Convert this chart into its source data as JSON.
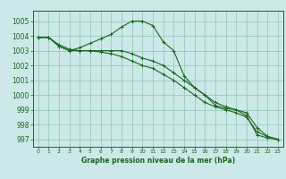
{
  "title": "Graphe pression niveau de la mer (hPa)",
  "background_color": "#cce8e8",
  "grid_color": "#99ccbb",
  "line_color": "#1a6620",
  "xlim": [
    -0.5,
    23.5
  ],
  "ylim": [
    996.5,
    1005.7
  ],
  "yticks": [
    997,
    998,
    999,
    1000,
    1001,
    1002,
    1003,
    1004,
    1005
  ],
  "xticks": [
    0,
    1,
    2,
    3,
    4,
    5,
    6,
    7,
    8,
    9,
    10,
    11,
    12,
    13,
    14,
    15,
    16,
    17,
    18,
    19,
    20,
    21,
    22,
    23
  ],
  "series1": {
    "x": [
      0,
      1,
      2,
      3,
      4,
      5,
      6,
      7,
      8,
      9,
      10,
      11,
      12,
      13,
      14,
      15,
      16,
      17,
      18,
      19,
      20,
      21,
      22,
      23
    ],
    "y": [
      1003.9,
      1003.9,
      1003.3,
      1003.0,
      1003.2,
      1003.5,
      1003.8,
      1004.1,
      1004.6,
      1005.0,
      1005.0,
      1004.7,
      1003.6,
      1003.0,
      1001.3,
      1000.5,
      1000.0,
      999.3,
      999.1,
      999.0,
      998.6,
      997.3,
      997.1,
      997.0
    ]
  },
  "series2": {
    "x": [
      0,
      1,
      2,
      3,
      4,
      5,
      6,
      7,
      8,
      9,
      10,
      11,
      12,
      13,
      14,
      15,
      16,
      17,
      18,
      19,
      20,
      21,
      22,
      23
    ],
    "y": [
      1003.9,
      1003.9,
      1003.4,
      1003.1,
      1003.0,
      1003.0,
      1002.9,
      1002.8,
      1002.6,
      1002.3,
      1002.0,
      1001.8,
      1001.4,
      1001.0,
      1000.5,
      1000.0,
      999.5,
      999.2,
      999.0,
      998.8,
      998.5,
      997.5,
      997.2,
      997.0
    ]
  },
  "series3": {
    "x": [
      0,
      1,
      2,
      3,
      4,
      5,
      6,
      7,
      8,
      9,
      10,
      11,
      12,
      13,
      14,
      15,
      16,
      17,
      18,
      19,
      20,
      21,
      22,
      23
    ],
    "y": [
      1003.9,
      1003.9,
      1003.3,
      1003.0,
      1003.0,
      1003.0,
      1003.0,
      1003.0,
      1003.0,
      1002.8,
      1002.5,
      1002.3,
      1002.0,
      1001.5,
      1001.0,
      1000.5,
      1000.0,
      999.5,
      999.2,
      999.0,
      998.8,
      997.8,
      997.2,
      997.0
    ]
  }
}
